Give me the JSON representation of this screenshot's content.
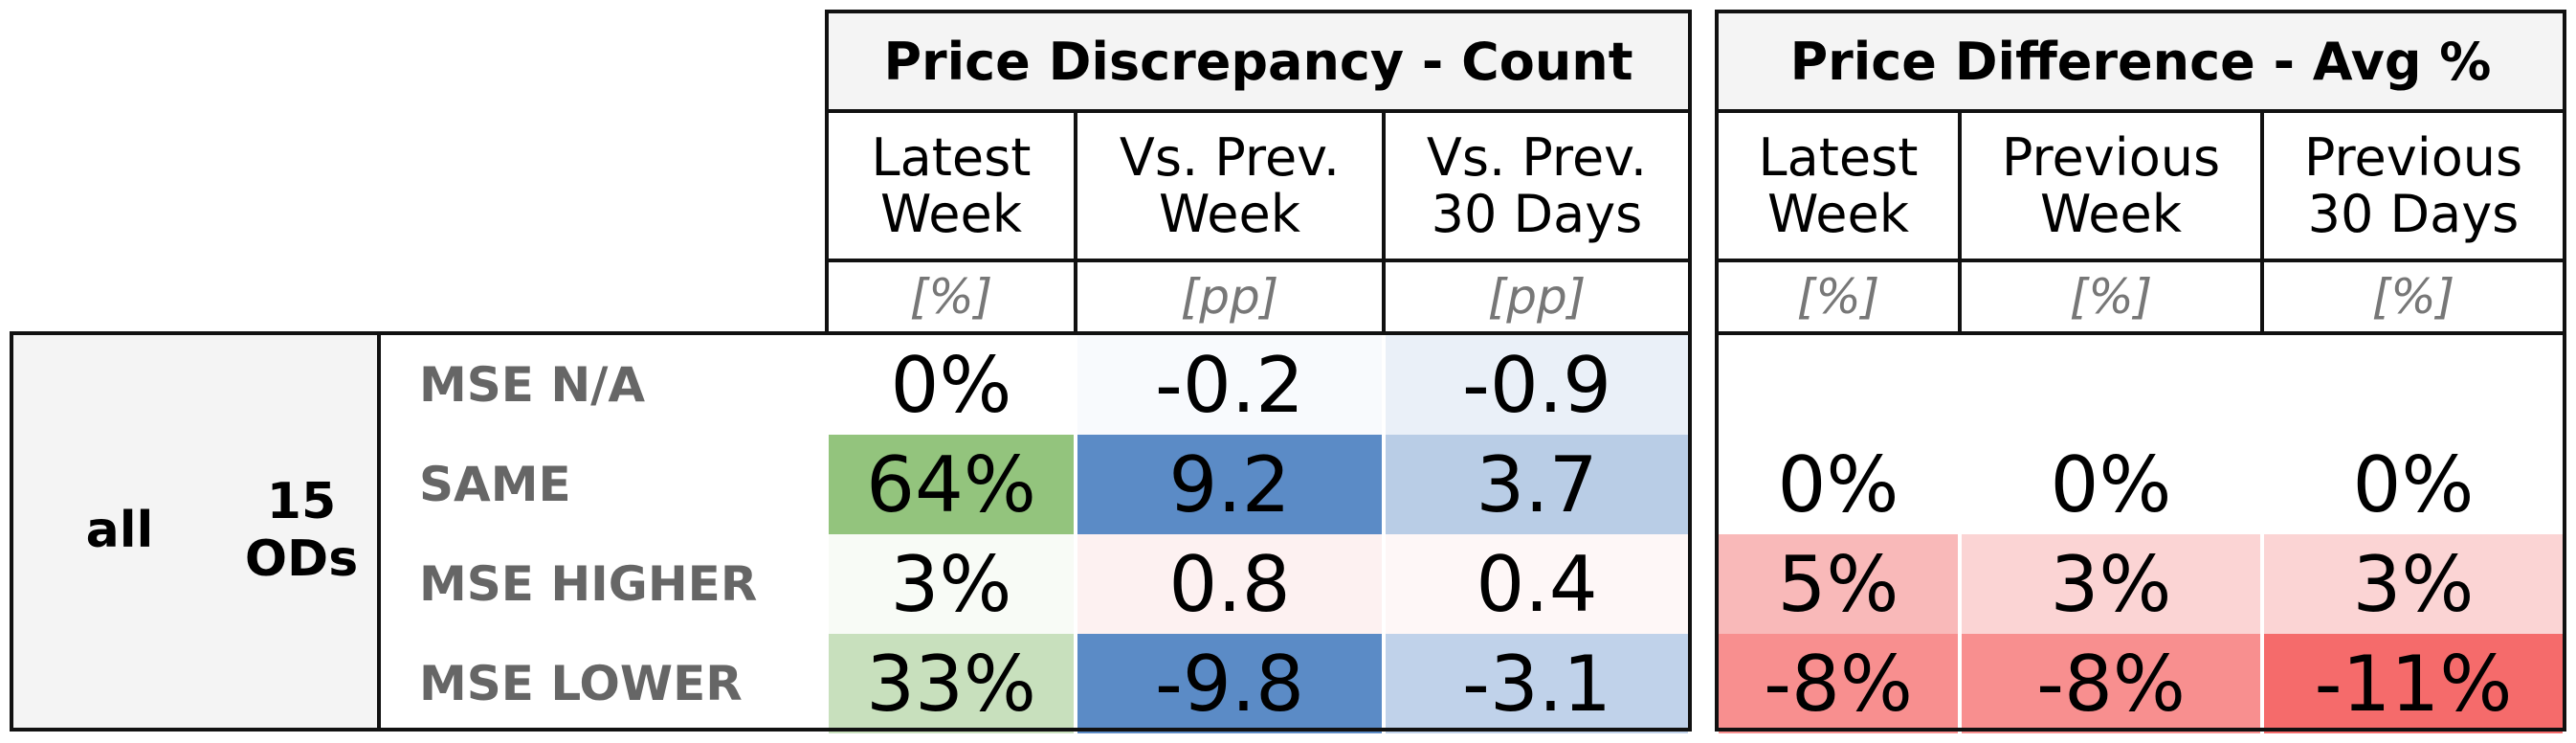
{
  "sections": {
    "count": {
      "title": "Price Discrepancy - Count",
      "columns": [
        {
          "label": "Latest\nWeek",
          "unit": "[%]"
        },
        {
          "label": "Vs. Prev.\nWeek",
          "unit": "[pp]"
        },
        {
          "label": "Vs. Prev.\n30 Days",
          "unit": "[pp]"
        }
      ]
    },
    "avg": {
      "title": "Price Difference - Avg %",
      "columns": [
        {
          "label": "Latest\nWeek",
          "unit": "[%]"
        },
        {
          "label": "Previous\nWeek",
          "unit": "[%]"
        },
        {
          "label": "Previous\n30 Days",
          "unit": "[%]"
        }
      ]
    }
  },
  "group": {
    "label_1": "all",
    "label_2": "15\nODs"
  },
  "rows": [
    {
      "label": "MSE N/A",
      "count": [
        {
          "v": "0%",
          "c": "#ffffff"
        },
        {
          "v": "-0.2",
          "c": "#f8fafd"
        },
        {
          "v": "-0.9",
          "c": "#eaf0f8"
        }
      ],
      "avg": [
        {
          "v": "",
          "c": "#ffffff"
        },
        {
          "v": "",
          "c": "#ffffff"
        },
        {
          "v": "",
          "c": "#ffffff"
        }
      ]
    },
    {
      "label": "SAME",
      "count": [
        {
          "v": "64%",
          "c": "#93c47d"
        },
        {
          "v": "9.2",
          "c": "#5b8bc6"
        },
        {
          "v": "3.7",
          "c": "#b9cde6"
        }
      ],
      "avg": [
        {
          "v": "0%",
          "c": "#ffffff"
        },
        {
          "v": "0%",
          "c": "#ffffff"
        },
        {
          "v": "0%",
          "c": "#ffffff"
        }
      ]
    },
    {
      "label": "MSE HIGHER",
      "count": [
        {
          "v": "3%",
          "c": "#f8fbf6"
        },
        {
          "v": "0.8",
          "c": "#fdf1f1"
        },
        {
          "v": "0.4",
          "c": "#fef7f7"
        }
      ],
      "avg": [
        {
          "v": "5%",
          "c": "#f9b9b9"
        },
        {
          "v": "3%",
          "c": "#fbd4d4"
        },
        {
          "v": "3%",
          "c": "#fbd4d4"
        }
      ]
    },
    {
      "label": "MSE LOWER",
      "count": [
        {
          "v": "33%",
          "c": "#c8e0bd"
        },
        {
          "v": "-9.8",
          "c": "#5b8bc6"
        },
        {
          "v": "-3.1",
          "c": "#c0d2ea"
        }
      ],
      "avg": [
        {
          "v": "-8%",
          "c": "#f88f8f"
        },
        {
          "v": "-8%",
          "c": "#f88f8f"
        },
        {
          "v": "-11%",
          "c": "#f56b6b"
        }
      ]
    }
  ]
}
